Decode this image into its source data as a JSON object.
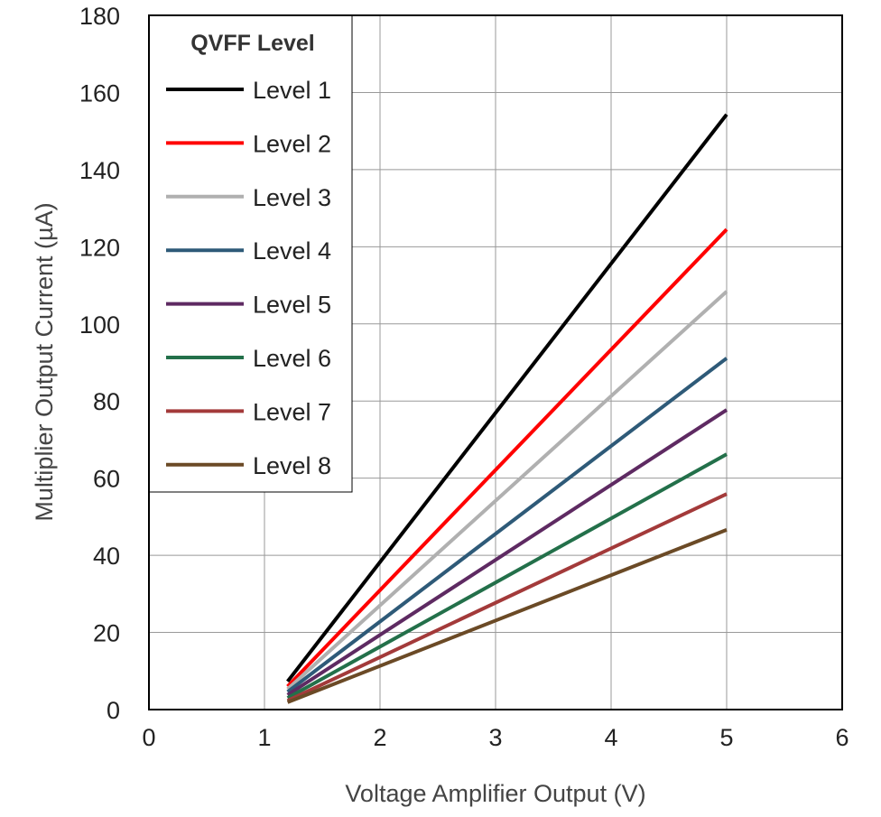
{
  "chart_data": {
    "type": "line",
    "title": "",
    "xlabel": "Voltage Amplifier Output (V)",
    "ylabel": "Multiplier Output Current (µA)",
    "xlim": [
      0,
      6
    ],
    "ylim": [
      0,
      180
    ],
    "xticks": [
      0,
      1,
      2,
      3,
      4,
      5,
      6
    ],
    "yticks": [
      0,
      20,
      40,
      60,
      80,
      100,
      120,
      140,
      160,
      180
    ],
    "grid": true,
    "legend": {
      "title": "QVFF Level",
      "placement": "top-left"
    },
    "series": [
      {
        "name": "Level 1",
        "color": "#000000",
        "x": [
          1.2,
          5
        ],
        "y": [
          7.3,
          154.3
        ]
      },
      {
        "name": "Level 2",
        "color": "#ff0000",
        "x": [
          1.2,
          5
        ],
        "y": [
          6.0,
          124.5
        ]
      },
      {
        "name": "Level 3",
        "color": "#b0b0b0",
        "x": [
          1.2,
          5
        ],
        "y": [
          5.3,
          108.4
        ]
      },
      {
        "name": "Level 4",
        "color": "#2e5a78",
        "x": [
          1.2,
          5
        ],
        "y": [
          4.6,
          91.1
        ]
      },
      {
        "name": "Level 5",
        "color": "#5e2a62",
        "x": [
          1.2,
          5
        ],
        "y": [
          3.8,
          77.7
        ]
      },
      {
        "name": "Level 6",
        "color": "#23704a",
        "x": [
          1.2,
          5
        ],
        "y": [
          3.0,
          66.2
        ]
      },
      {
        "name": "Level 7",
        "color": "#a33a3a",
        "x": [
          1.2,
          5
        ],
        "y": [
          2.3,
          55.9
        ]
      },
      {
        "name": "Level 8",
        "color": "#6b4a26",
        "x": [
          1.2,
          5
        ],
        "y": [
          1.9,
          46.6
        ]
      }
    ]
  }
}
